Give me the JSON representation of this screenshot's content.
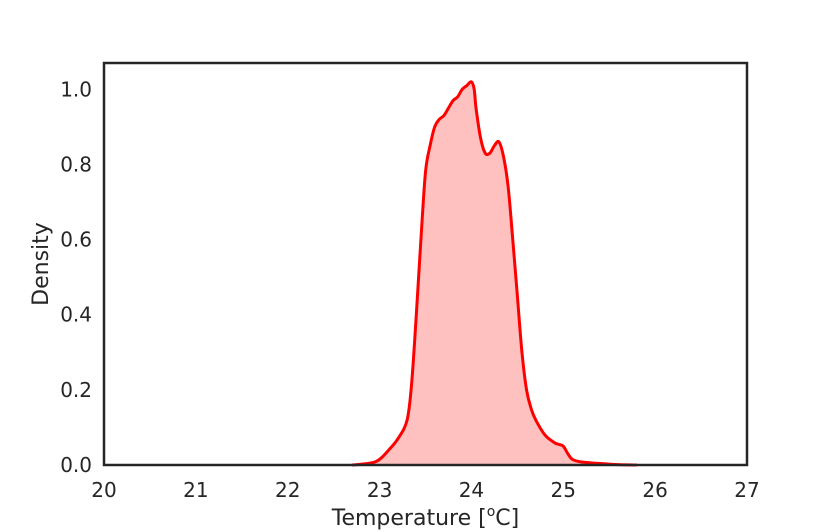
{
  "chart_data": {
    "type": "area",
    "xlabel": "Temperature [",
    "xlabel_sup": "o",
    "xlabel_suffix": "C]",
    "ylabel": "Density",
    "xlim": [
      20,
      27
    ],
    "ylim": [
      0.0,
      1.07
    ],
    "x_ticks": [
      "20",
      "21",
      "22",
      "23",
      "24",
      "25",
      "26",
      "27"
    ],
    "y_ticks": [
      "0.0",
      "0.2",
      "0.4",
      "0.6",
      "0.8",
      "1.0"
    ],
    "grid": false,
    "line_color": "#ff0000",
    "fill_color": "#ffc0c0",
    "series": [
      {
        "x": [
          22.7,
          22.9,
          23.0,
          23.1,
          23.2,
          23.3,
          23.35,
          23.4,
          23.45,
          23.5,
          23.55,
          23.6,
          23.65,
          23.7,
          23.75,
          23.8,
          23.85,
          23.9,
          23.95,
          24.0,
          24.03,
          24.05,
          24.1,
          24.15,
          24.2,
          24.25,
          24.3,
          24.35,
          24.4,
          24.45,
          24.5,
          24.55,
          24.6,
          24.65,
          24.7,
          24.8,
          24.9,
          24.95,
          25.0,
          25.05,
          25.1,
          25.2,
          25.4,
          25.6,
          25.8
        ],
        "y": [
          0.0,
          0.005,
          0.015,
          0.04,
          0.07,
          0.12,
          0.22,
          0.4,
          0.6,
          0.78,
          0.85,
          0.9,
          0.92,
          0.93,
          0.95,
          0.97,
          0.98,
          1.0,
          1.01,
          1.02,
          1.0,
          0.95,
          0.87,
          0.83,
          0.83,
          0.85,
          0.86,
          0.82,
          0.74,
          0.6,
          0.45,
          0.3,
          0.2,
          0.15,
          0.12,
          0.08,
          0.06,
          0.055,
          0.05,
          0.03,
          0.015,
          0.008,
          0.004,
          0.001,
          0.0
        ]
      }
    ]
  }
}
